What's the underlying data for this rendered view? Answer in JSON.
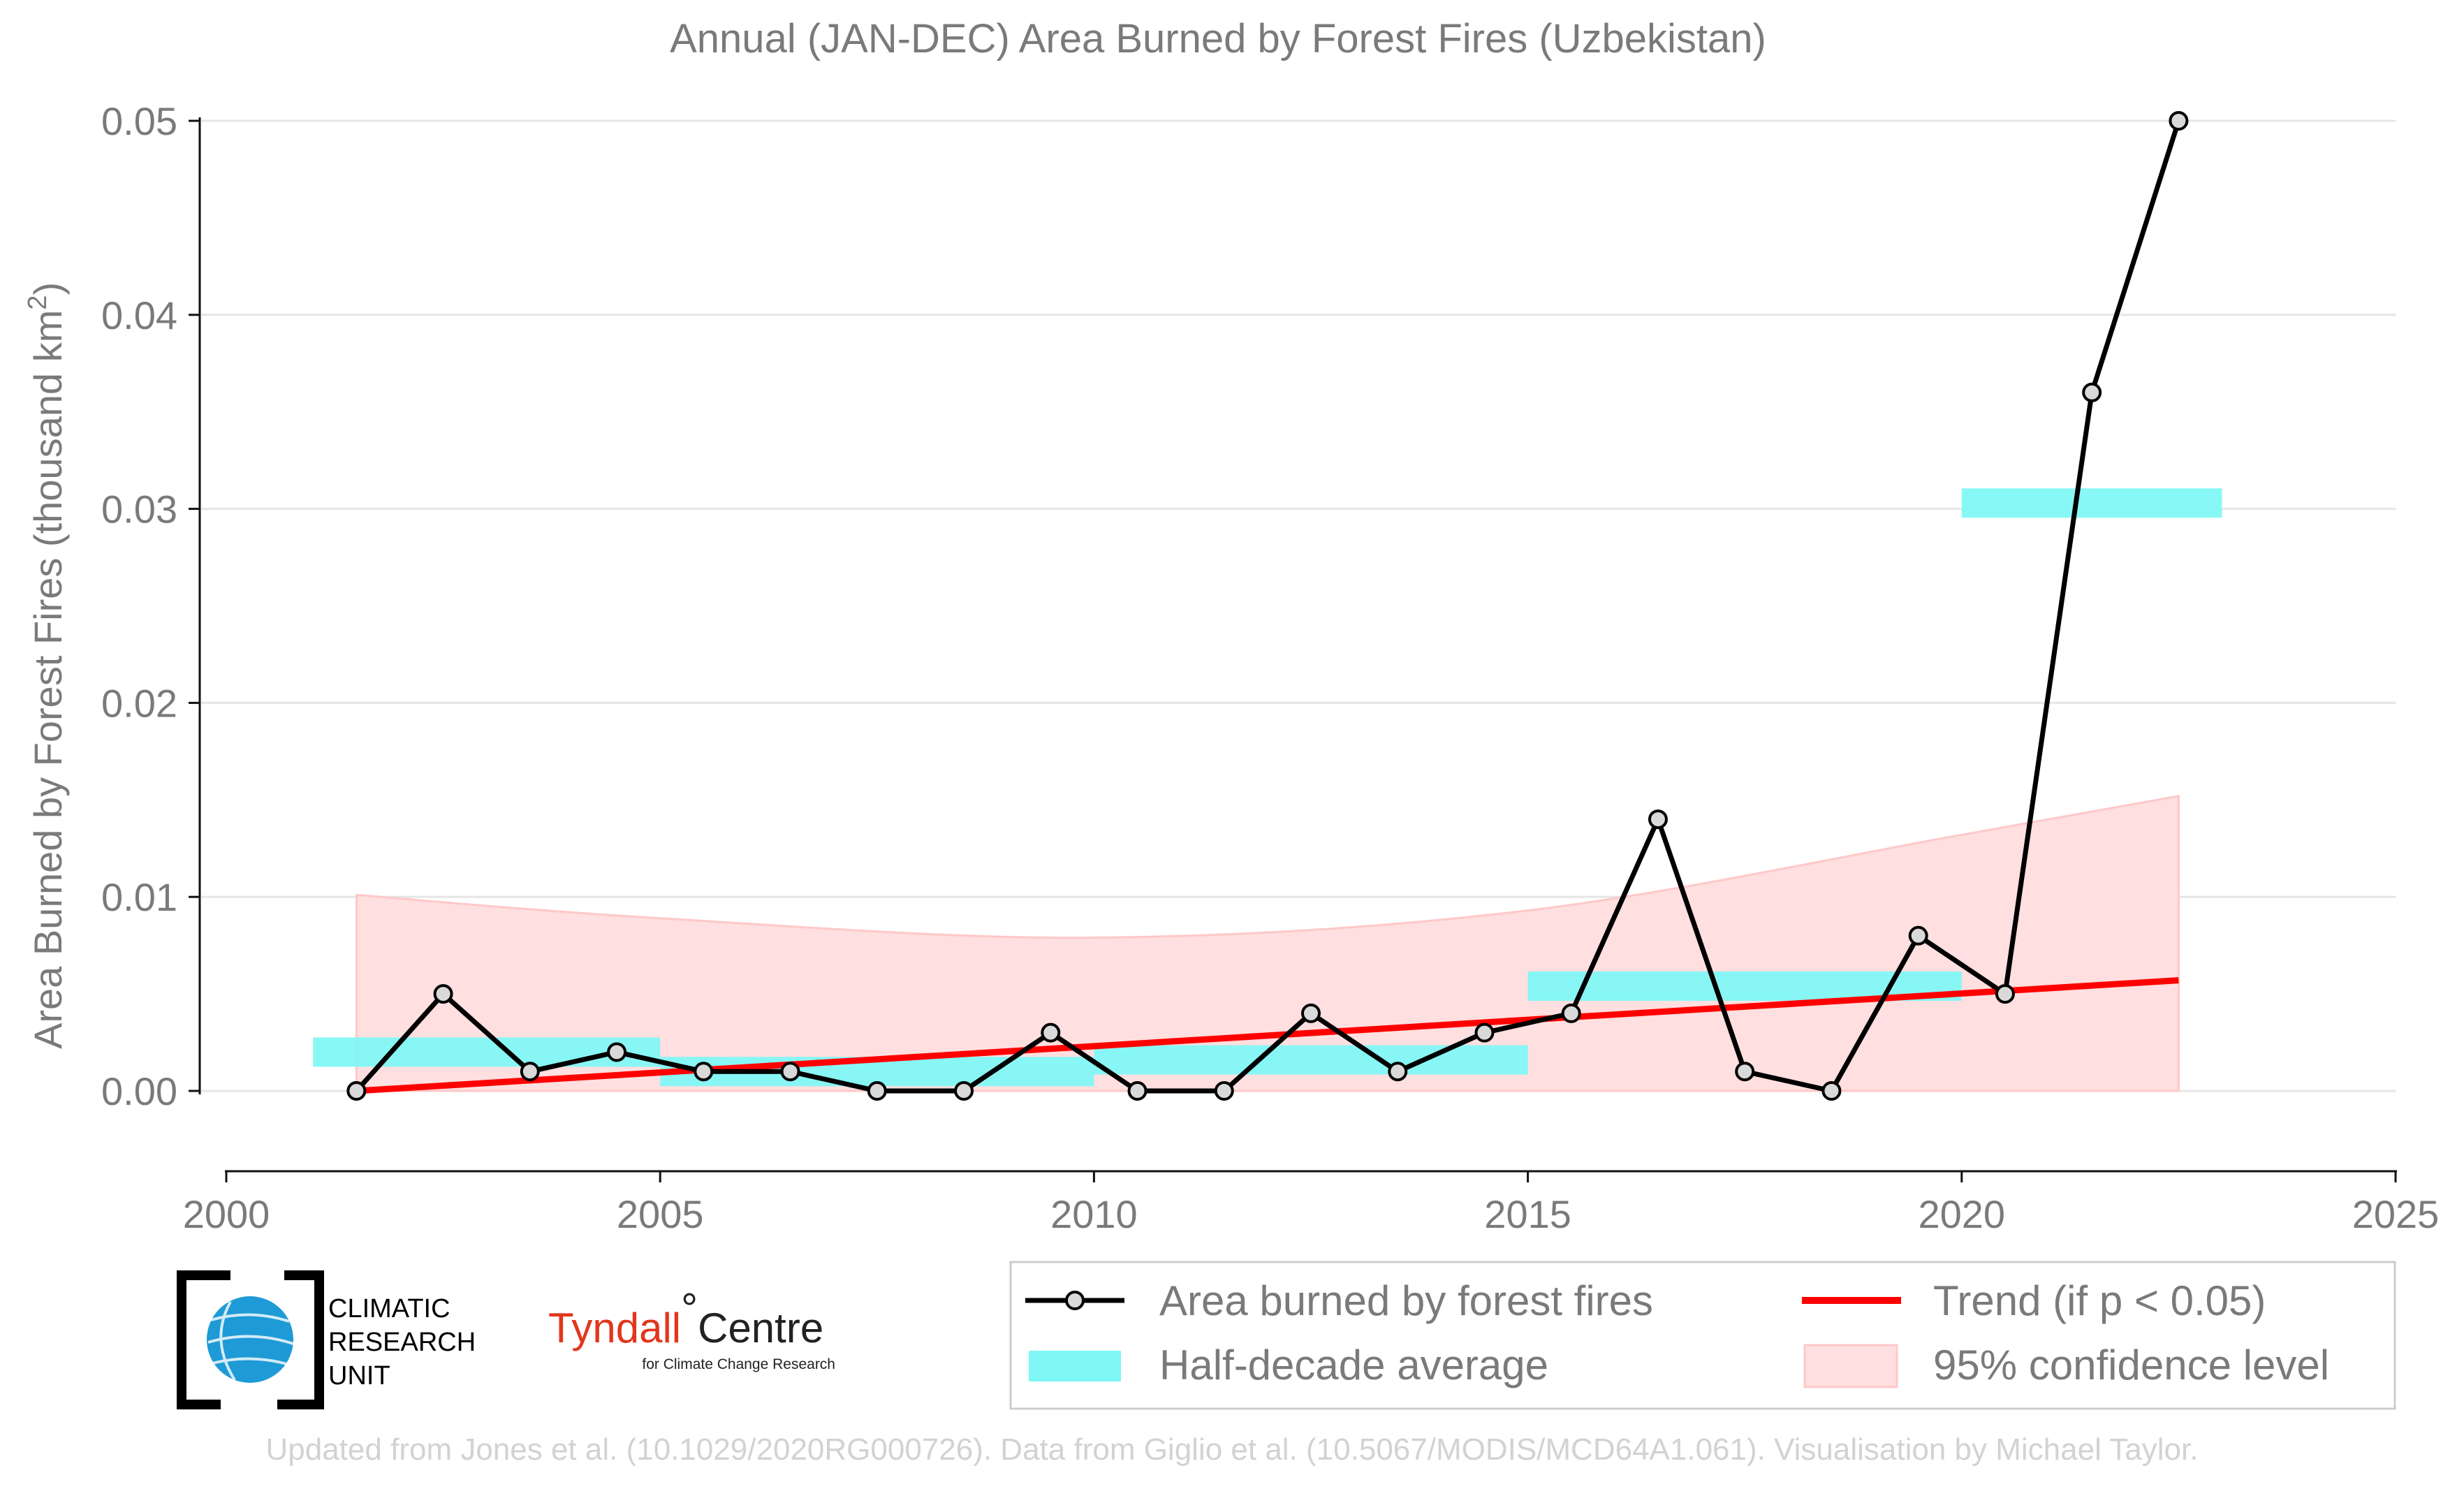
{
  "chart_data": {
    "type": "line",
    "title": "Annual (JAN-DEC) Area Burned by Forest Fires (Uzbekistan)",
    "ylabel": "Area Burned by Forest Fires (thousand km",
    "ylabel_sup": "2",
    "ylabel_end": ")",
    "xlim": [
      2000,
      2025
    ],
    "ylim": [
      0.0,
      0.05
    ],
    "xticks": [
      2000,
      2005,
      2010,
      2015,
      2020,
      2025
    ],
    "xtick_labels": [
      "2000",
      "2005",
      "2010",
      "2015",
      "2020",
      "2025"
    ],
    "yticks": [
      0.0,
      0.01,
      0.02,
      0.03,
      0.04,
      0.05
    ],
    "ytick_labels": [
      "0.00",
      "0.01",
      "0.02",
      "0.03",
      "0.04",
      "0.05"
    ],
    "grid": "horizontal",
    "series": [
      {
        "name": "Area burned by forest fires",
        "color": "#000000",
        "x": [
          2001.5,
          2002.5,
          2003.5,
          2004.5,
          2005.5,
          2006.5,
          2007.5,
          2008.5,
          2009.5,
          2010.5,
          2011.5,
          2012.5,
          2013.5,
          2014.5,
          2015.5,
          2016.5,
          2017.5,
          2018.5,
          2019.5,
          2020.5,
          2021.5,
          2022.5
        ],
        "values": [
          0.0,
          0.005,
          0.001,
          0.002,
          0.001,
          0.001,
          0.0,
          0.0,
          0.003,
          0.0,
          0.0,
          0.004,
          0.001,
          0.003,
          0.004,
          0.014,
          0.001,
          0.0,
          0.008,
          0.005,
          0.036,
          0.05
        ]
      },
      {
        "name": "Half-decade average",
        "color": "#7ef7f5",
        "segments": [
          {
            "x0": 2001.0,
            "x1": 2005.0,
            "value": 0.002
          },
          {
            "x0": 2005.0,
            "x1": 2010.0,
            "value": 0.001
          },
          {
            "x0": 2010.0,
            "x1": 2015.0,
            "value": 0.0016
          },
          {
            "x0": 2015.0,
            "x1": 2020.0,
            "value": 0.0054
          },
          {
            "x0": 2020.0,
            "x1": 2023.0,
            "value": 0.0303
          }
        ]
      },
      {
        "name": "Trend (if p < 0.05)",
        "color": "#ff0000",
        "x": [
          2001.5,
          2022.5
        ],
        "values": [
          0.0,
          0.0057
        ]
      },
      {
        "name": "95% confidence level",
        "color": "#ffcccc",
        "x": [
          2001.5,
          2005.0,
          2010.0,
          2015.0,
          2020.0,
          2022.5
        ],
        "upper": [
          0.0101,
          0.0089,
          0.0079,
          0.0093,
          0.0132,
          0.0152
        ],
        "lower": [
          0.0,
          0.0,
          0.0,
          0.0,
          0.0,
          0.0
        ]
      }
    ]
  },
  "logos": {
    "cru": [
      "CLIMATIC",
      "RESEARCH",
      "UNIT"
    ],
    "tyndall_main": "Tyndall",
    "tyndall_degree": "°",
    "tyndall_centre": "Centre",
    "tyndall_sub": "for Climate Change Research"
  },
  "footer": "Updated from Jones et al. (10.1029/2020RG000726). Data from Giglio et al. (10.5067/MODIS/MCD64A1.061). Visualisation by Michael Taylor.",
  "colors": {
    "text_gray": "#7a7a7a",
    "cru_blue": "#1e9ad6",
    "tyndall_red": "#e2361d"
  }
}
